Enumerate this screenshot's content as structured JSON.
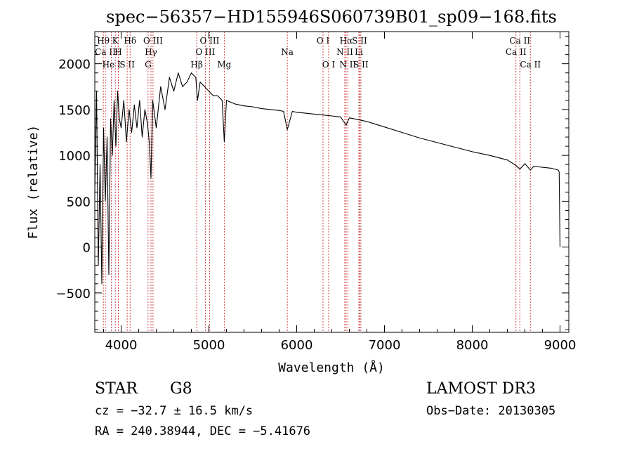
{
  "chart_data": {
    "type": "line",
    "title": "spec−56357−HD155946S060739B01_sp09−168.fits",
    "xlabel": "Wavelength (Å)",
    "ylabel": "Flux (relative)",
    "xlim": [
      3700,
      9100
    ],
    "ylim": [
      -930,
      2350
    ],
    "xticks": [
      {
        "value": 4000,
        "label": "4000"
      },
      {
        "value": 5000,
        "label": "5000"
      },
      {
        "value": 6000,
        "label": "6000"
      },
      {
        "value": 7000,
        "label": "7000"
      },
      {
        "value": 8000,
        "label": "8000"
      },
      {
        "value": 9000,
        "label": "9000"
      }
    ],
    "yticks": [
      {
        "value": -500,
        "label": "−500"
      },
      {
        "value": 0,
        "label": "0"
      },
      {
        "value": 500,
        "label": "500"
      },
      {
        "value": 1000,
        "label": "1000"
      },
      {
        "value": 1500,
        "label": "1500"
      },
      {
        "value": 2000,
        "label": "2000"
      }
    ],
    "series": [
      {
        "name": "flux",
        "x": [
          3700,
          3720,
          3740,
          3760,
          3780,
          3800,
          3820,
          3840,
          3860,
          3880,
          3900,
          3920,
          3940,
          3960,
          3980,
          4000,
          4030,
          4060,
          4090,
          4120,
          4150,
          4180,
          4210,
          4240,
          4270,
          4300,
          4320,
          4340,
          4360,
          4400,
          4450,
          4500,
          4550,
          4600,
          4650,
          4700,
          4750,
          4800,
          4850,
          4870,
          4900,
          4950,
          5000,
          5050,
          5100,
          5150,
          5175,
          5200,
          5300,
          5400,
          5500,
          5600,
          5700,
          5800,
          5850,
          5893,
          5950,
          6000,
          6100,
          6200,
          6300,
          6400,
          6500,
          6563,
          6600,
          6700,
          6800,
          6900,
          7000,
          7200,
          7400,
          7600,
          7800,
          8000,
          8200,
          8400,
          8498,
          8542,
          8600,
          8662,
          8700,
          8800,
          8900,
          8980,
          8990,
          9000
        ],
        "y": [
          600,
          1700,
          -200,
          900,
          -400,
          1300,
          500,
          1200,
          -300,
          1400,
          1000,
          1600,
          1100,
          1700,
          1400,
          1300,
          1600,
          1150,
          1500,
          1250,
          1550,
          1300,
          1600,
          1200,
          1500,
          1350,
          1150,
          750,
          1600,
          1300,
          1750,
          1500,
          1850,
          1700,
          1900,
          1750,
          1800,
          1900,
          1850,
          1600,
          1800,
          1750,
          1700,
          1650,
          1650,
          1600,
          1150,
          1600,
          1560,
          1540,
          1530,
          1510,
          1500,
          1490,
          1480,
          1280,
          1480,
          1470,
          1460,
          1450,
          1440,
          1430,
          1420,
          1330,
          1410,
          1390,
          1370,
          1340,
          1310,
          1250,
          1190,
          1140,
          1090,
          1040,
          1000,
          950,
          890,
          850,
          910,
          840,
          880,
          870,
          860,
          840,
          820,
          0
        ]
      }
    ],
    "lines": [
      {
        "name": "Hθ",
        "wl": 3797,
        "row": 1
      },
      {
        "name": "Ca II",
        "wl": 3820,
        "row": 2
      },
      {
        "name": "He I",
        "wl": 3889,
        "row": 3
      },
      {
        "name": "K",
        "wl": 3934,
        "row": 1
      },
      {
        "name": "H",
        "wl": 3968,
        "row": 2
      },
      {
        "name": "S II",
        "wl": 4069,
        "row": 3
      },
      {
        "name": "Hδ",
        "wl": 4102,
        "row": 1
      },
      {
        "name": "Hγ",
        "wl": 4340,
        "row": 2
      },
      {
        "name": "G",
        "wl": 4307,
        "row": 3
      },
      {
        "name": "O III",
        "wl": 4363,
        "row": 1
      },
      {
        "name": "Hβ",
        "wl": 4861,
        "row": 3
      },
      {
        "name": "O III",
        "wl": 4959,
        "row": 2
      },
      {
        "name": "O III",
        "wl": 5007,
        "row": 1
      },
      {
        "name": "Mg",
        "wl": 5175,
        "row": 3
      },
      {
        "name": "Na",
        "wl": 5893,
        "row": 2
      },
      {
        "name": "O I",
        "wl": 6300,
        "row": 1
      },
      {
        "name": "O I",
        "wl": 6364,
        "row": 3
      },
      {
        "name": "N II",
        "wl": 6548,
        "row": 2
      },
      {
        "name": "Hα",
        "wl": 6563,
        "row": 1
      },
      {
        "name": "N II",
        "wl": 6583,
        "row": 3
      },
      {
        "name": "S II",
        "wl": 6716,
        "row": 1
      },
      {
        "name": "Li",
        "wl": 6708,
        "row": 2
      },
      {
        "name": "S II",
        "wl": 6731,
        "row": 3
      },
      {
        "name": "Ca II",
        "wl": 8498,
        "row": 2
      },
      {
        "name": "Ca II",
        "wl": 8542,
        "row": 1
      },
      {
        "name": "Ca II",
        "wl": 8662,
        "row": 3
      }
    ]
  },
  "info": {
    "object_class": "STAR",
    "subclass": "G8",
    "survey": "LAMOST DR3",
    "redshift": "cz = −32.7 ± 16.5 km/s",
    "obs_date": "Obs−Date: 20130305",
    "coords": "RA = 240.38944, DEC =  −5.41676"
  },
  "colors": {
    "line_marker": "#cc3333",
    "spectrum": "#000000"
  }
}
